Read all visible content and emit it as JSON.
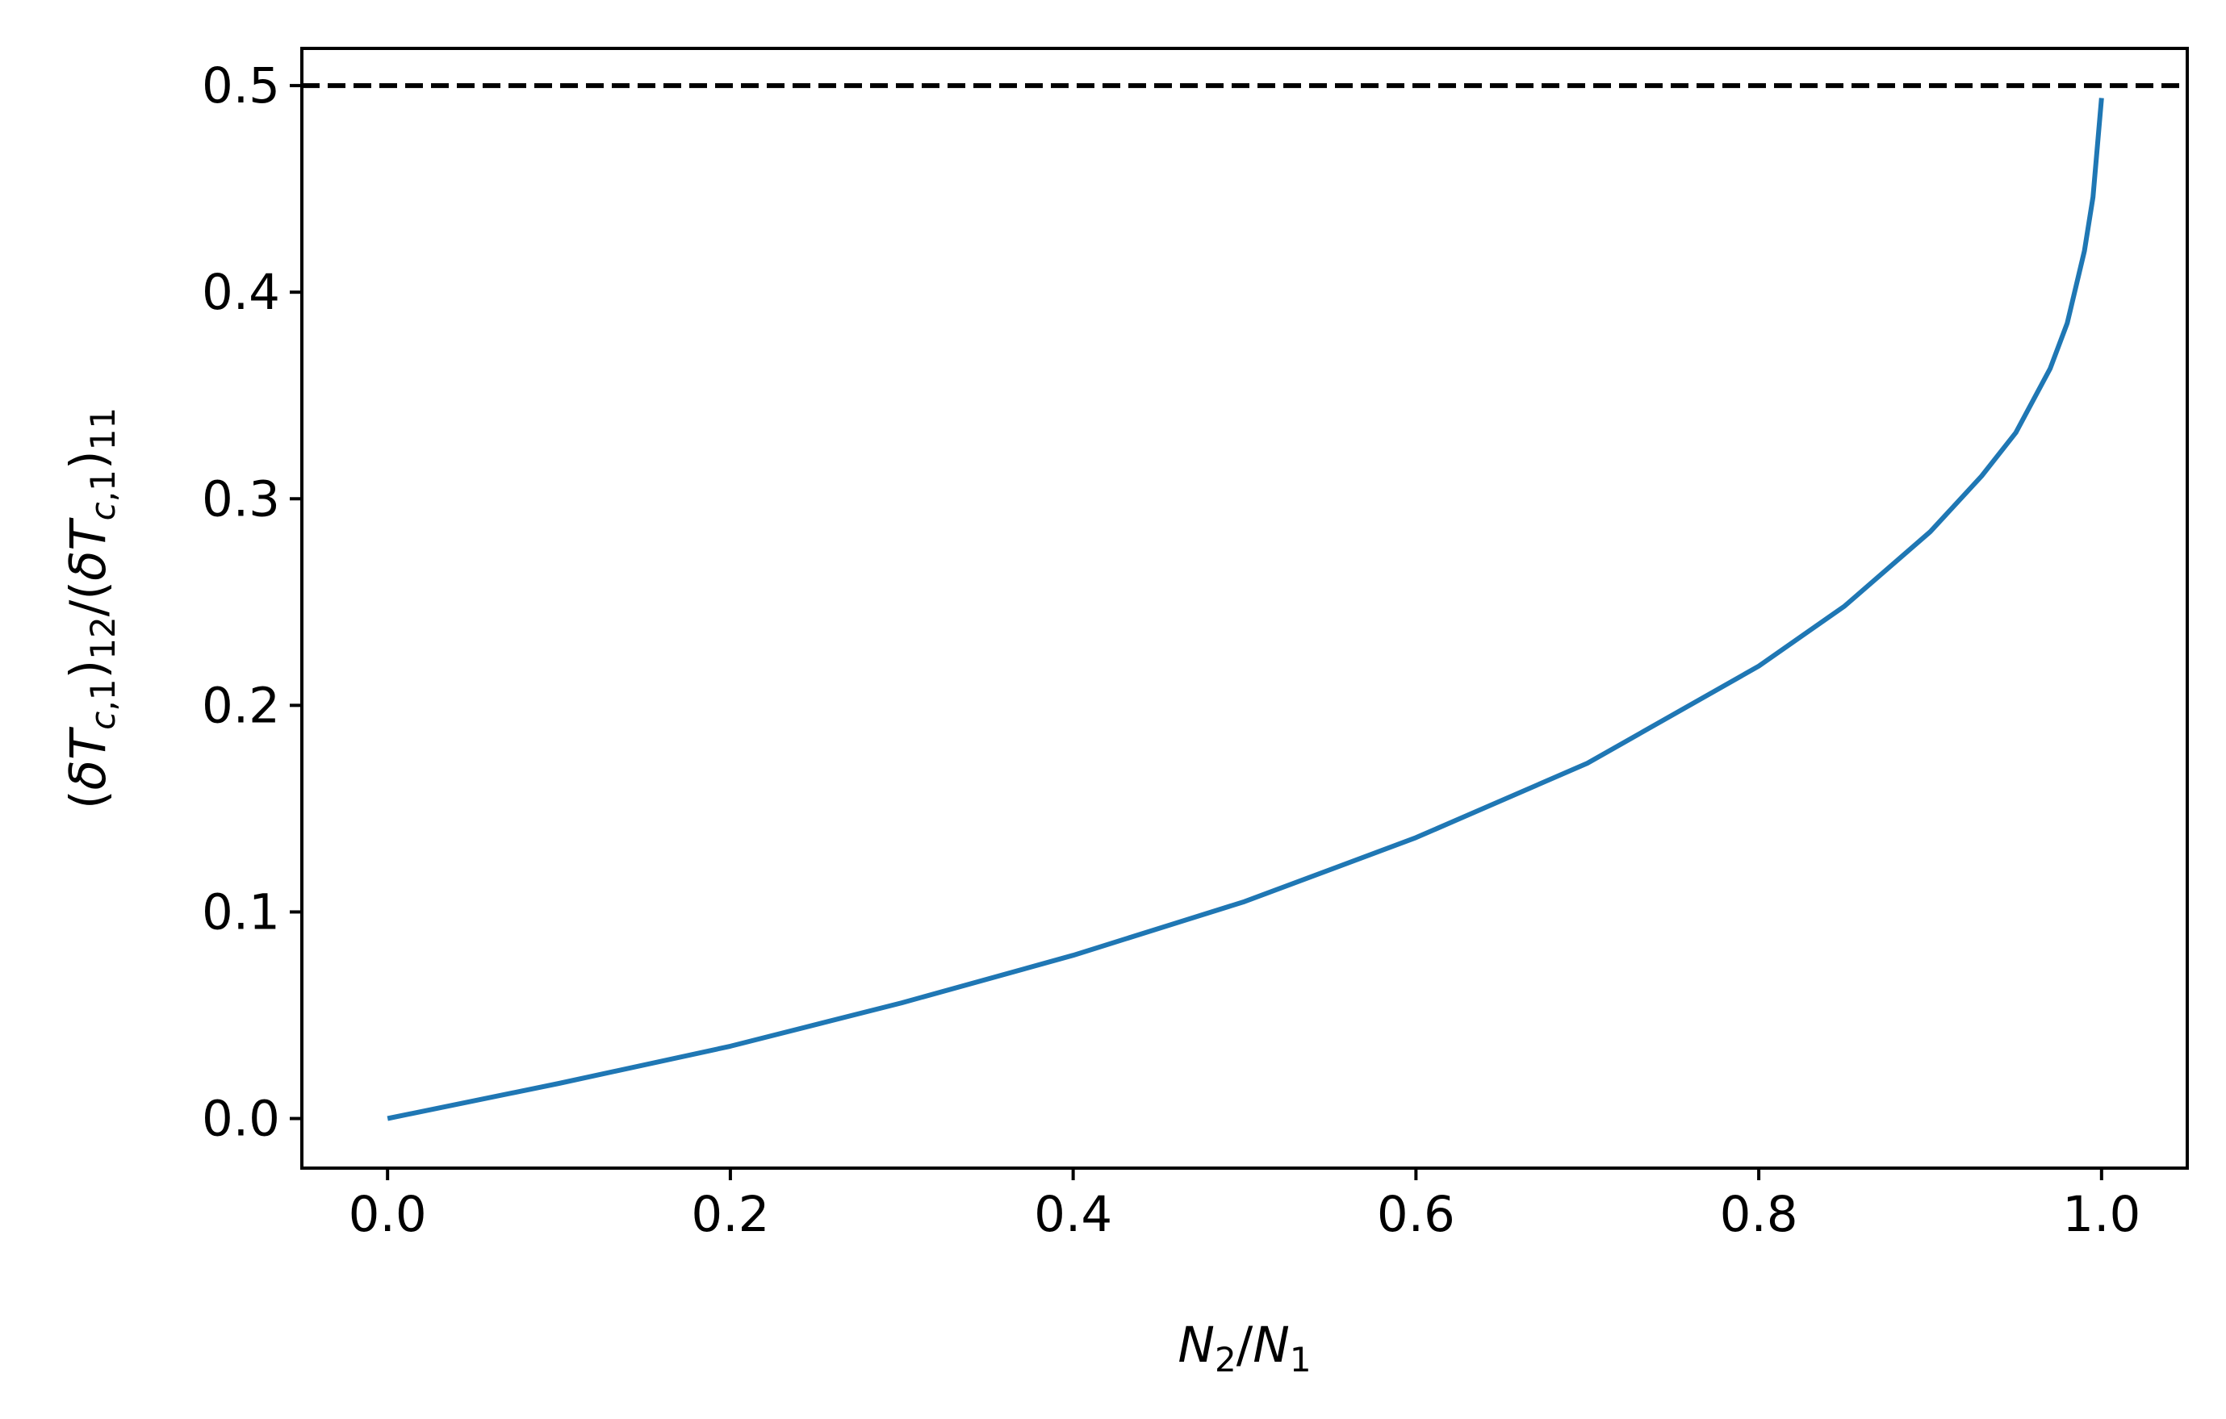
{
  "chart_data": {
    "type": "line",
    "xlabel": {
      "base1": "N",
      "sub1": "2",
      "sep": "/",
      "base2": "N",
      "sub2": "1"
    },
    "ylabel": {
      "p1": "(",
      "d1": "δ",
      "T1": "T",
      "s1": "c",
      "c1": ",",
      "o1": "1",
      "p2": ")",
      "s2": "12",
      "slash": "/(",
      "d2": "δ",
      "T2": "T",
      "s3": "c",
      "c2": ",",
      "o2": "1",
      "p3": ")",
      "s4": "11"
    },
    "xlim": [
      -0.05,
      1.05
    ],
    "ylim": [
      -0.024,
      0.518
    ],
    "x_ticks": [
      0.0,
      0.2,
      0.4,
      0.6,
      0.8,
      1.0
    ],
    "x_tick_labels": [
      "0.0",
      "0.2",
      "0.4",
      "0.6",
      "0.8",
      "1.0"
    ],
    "y_ticks": [
      0.0,
      0.1,
      0.2,
      0.3,
      0.4,
      0.5
    ],
    "y_tick_labels": [
      "0.0",
      "0.1",
      "0.2",
      "0.3",
      "0.4",
      "0.5"
    ],
    "grid": false,
    "reference_line": {
      "y": 0.5,
      "style": "dashed",
      "color": "#000000"
    },
    "series": [
      {
        "color": "#1f77b4",
        "x": [
          0.0,
          0.1,
          0.2,
          0.3,
          0.4,
          0.5,
          0.6,
          0.7,
          0.8,
          0.85,
          0.9,
          0.93,
          0.95,
          0.97,
          0.98,
          0.99,
          0.995,
          1.0
        ],
        "y": [
          0.0,
          0.017,
          0.035,
          0.056,
          0.079,
          0.105,
          0.136,
          0.172,
          0.219,
          0.248,
          0.284,
          0.311,
          0.332,
          0.363,
          0.385,
          0.42,
          0.446,
          0.494
        ]
      }
    ]
  }
}
